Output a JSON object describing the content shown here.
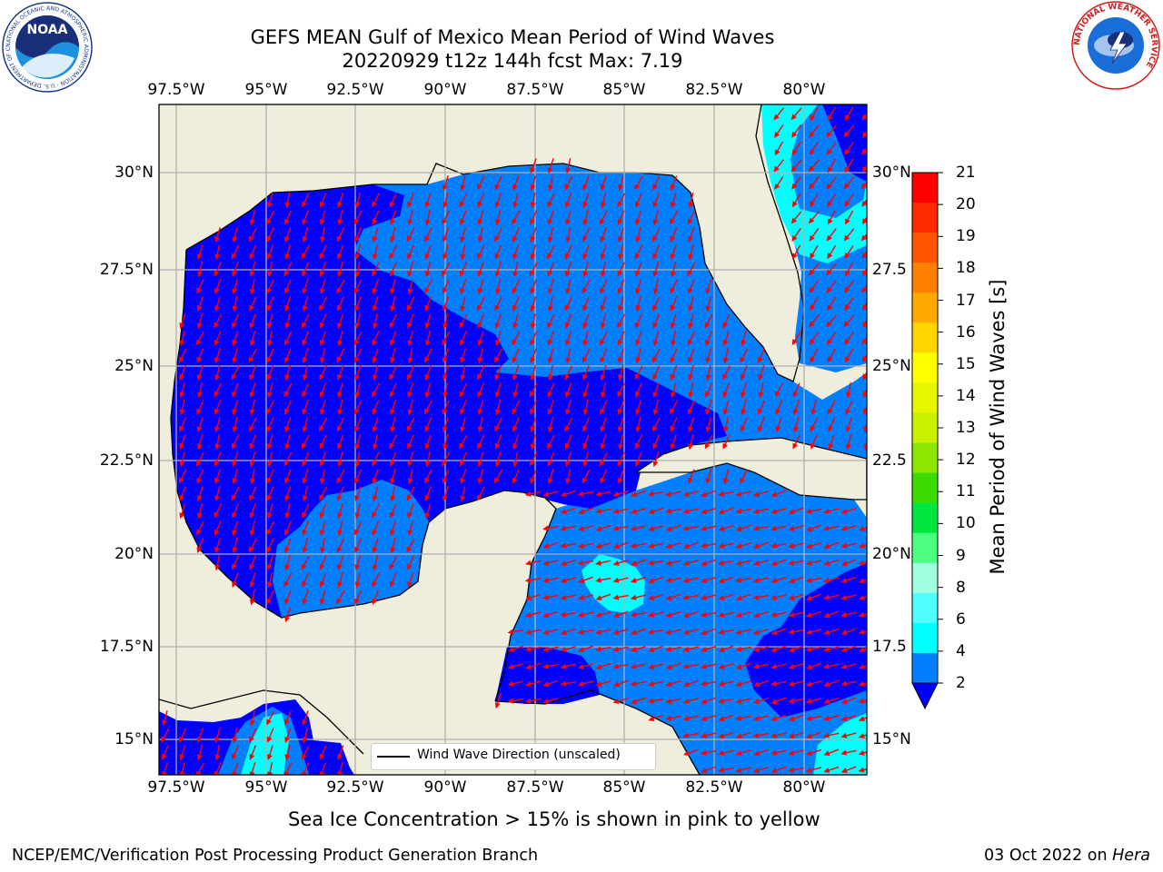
{
  "title": {
    "line1": "GEFS MEAN Gulf of Mexico Mean Period of Wind Waves",
    "line2": "20220929 t12z 144h fcst   Max: 7.19"
  },
  "logos": {
    "noaa_text": "NOAA",
    "noaa_ring_text": "NATIONAL OCEANIC AND ATMOSPHERIC ADMINISTRATION · U.S. DEPARTMENT OF COMMERCE",
    "nws_ring_text": "NATIONAL WEATHER SERVICE"
  },
  "map": {
    "lon_labels": [
      "97.5°W",
      "95°W",
      "92.5°W",
      "90°W",
      "87.5°W",
      "85°W",
      "82.5°W",
      "80°W"
    ],
    "lat_labels_left": [
      "30°N",
      "27.5°N",
      "25°N",
      "22.5°N",
      "20°N",
      "17.5°N",
      "15°N"
    ],
    "lat_labels_right": [
      "30°N",
      "27.5",
      "25°N",
      "22.5",
      "20°N",
      "17.5",
      "15°N"
    ],
    "land_color": "#efeddb",
    "arrow_color": "#ff0000",
    "grid_color": "#b0b0b0"
  },
  "legend": {
    "label": "Wind Wave Direction (unscaled)"
  },
  "colorbar": {
    "title": "Mean Period of Wind Waves [s]",
    "ticks": [
      "21",
      "20",
      "19",
      "18",
      "17",
      "16",
      "15",
      "14",
      "13",
      "12",
      "11",
      "10",
      "9",
      "8",
      "6",
      "4",
      "2"
    ],
    "colors": [
      "#ff0000",
      "#ff2a00",
      "#ff5500",
      "#ff8000",
      "#ffaa00",
      "#ffd500",
      "#ffff00",
      "#e6f500",
      "#c8f000",
      "#8ce600",
      "#3cdc00",
      "#00e640",
      "#4dff80",
      "#a0ffe0",
      "#50ffff",
      "#00ffff",
      "#0080ff"
    ],
    "extend_color": "#0000ff"
  },
  "footer": {
    "note": "Sea Ice Concentration > 15% is shown in pink to yellow",
    "credit": "NCEP/EMC/Verification Post Processing Product Generation Branch",
    "date": "03 Oct 2022 on",
    "host": "Hera"
  }
}
